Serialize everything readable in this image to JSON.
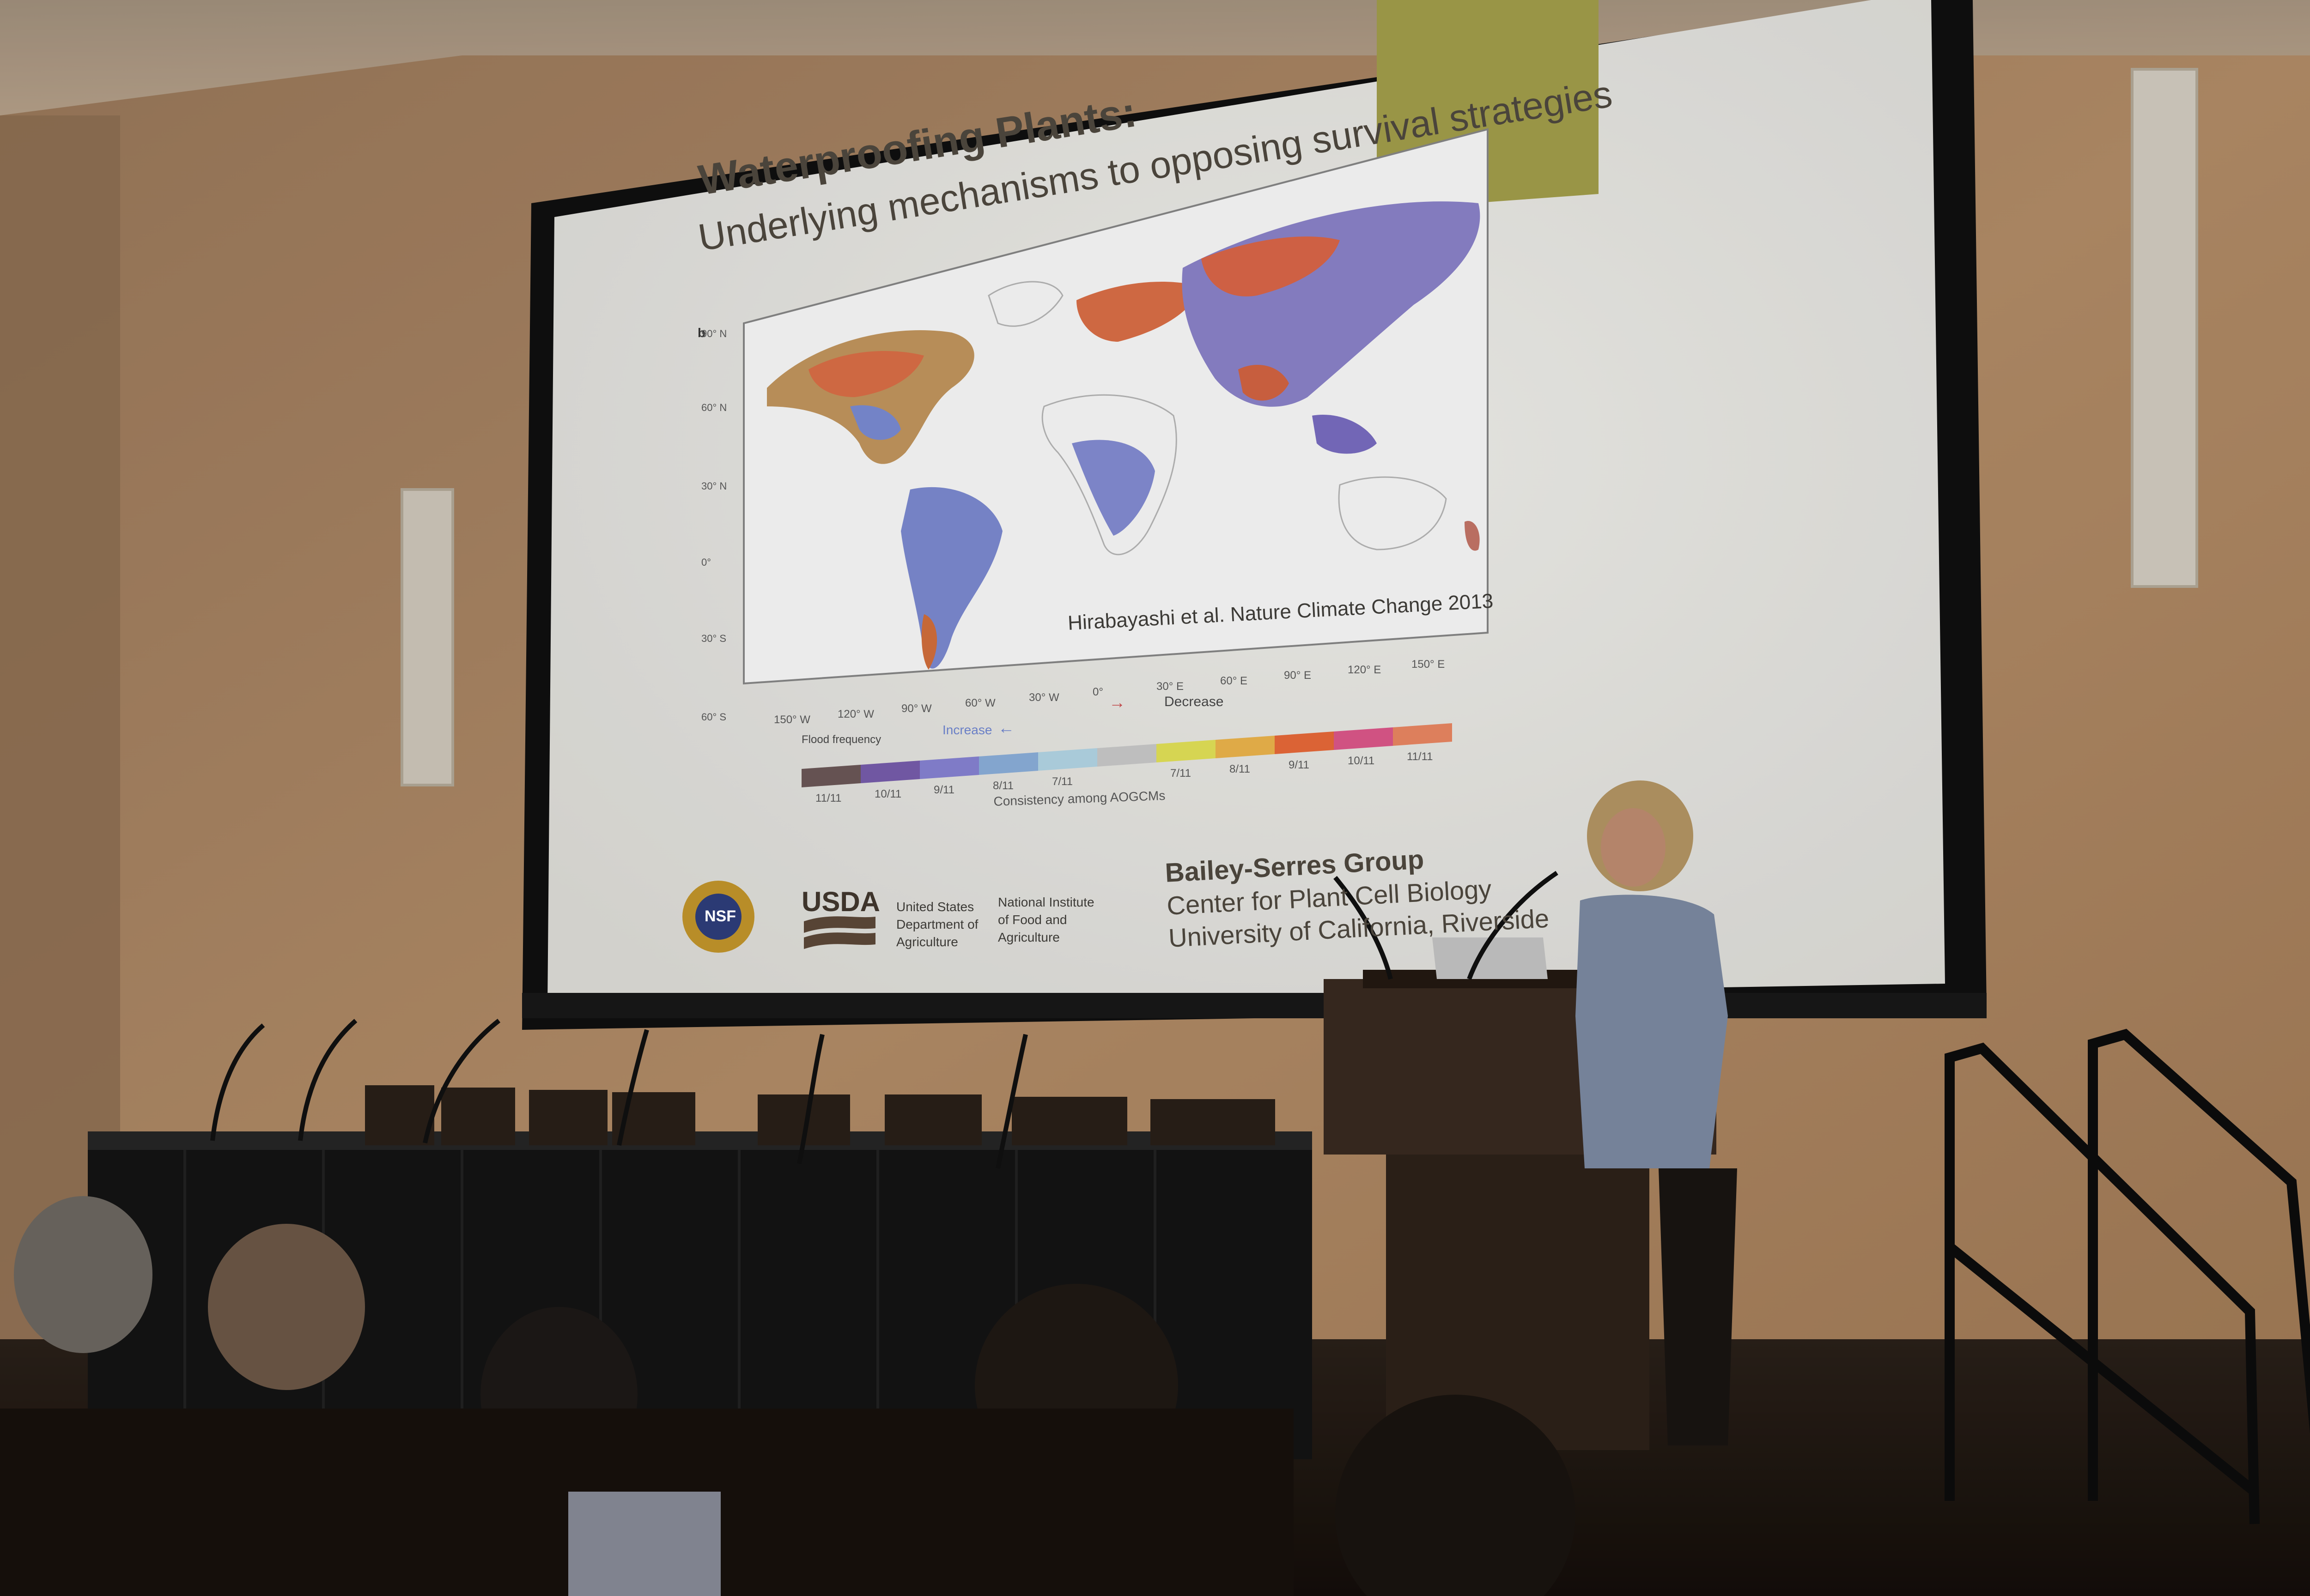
{
  "slide": {
    "title": "Waterproofing Plants:",
    "subtitle": "Underlying mechanisms to opposing survival strategies",
    "panel_letter": "b",
    "citation": "Hirabayashi et al. Nature Climate Change 2013",
    "lat_labels": [
      "90° N",
      "60° N",
      "30° N",
      "0°",
      "30° S",
      "60° S"
    ],
    "lon_labels": [
      "150° W",
      "120° W",
      "90° W",
      "60° W",
      "30° W",
      "0°",
      "30° E",
      "60° E",
      "90° E",
      "120° E",
      "150° E"
    ],
    "legend": {
      "title": "Flood frequency",
      "increase_label": "Increase",
      "decrease_label": "Decrease",
      "increase_values": [
        "11/11",
        "10/11",
        "9/11",
        "8/11",
        "7/11"
      ],
      "decrease_values": [
        "7/11",
        "8/11",
        "9/11",
        "10/11",
        "11/11"
      ],
      "increase_colors": [
        "#6e5a5a",
        "#7a5fb0",
        "#8a86d8",
        "#8fb3e0",
        "#b8dcec"
      ],
      "neutral_color": "#cfcfcf",
      "decrease_colors": [
        "#e9e85a",
        "#f2b94e",
        "#ee6c3a",
        "#e25a8e",
        "#f08a64"
      ],
      "axis_label": "Consistency among AOGCMs"
    },
    "logos": {
      "nsf": "NSF",
      "usda": "USDA",
      "usda_text": [
        "United States",
        "Department of",
        "Agriculture"
      ],
      "nifa_text": [
        "National Institute",
        "of Food and",
        "Agriculture"
      ]
    },
    "lab": {
      "line1": "Bailey-Serres Group",
      "line2": "Center for Plant Cell Biology",
      "line3": "University of California, Riverside"
    }
  },
  "colors": {
    "wall": "#b48a63",
    "screen": "#f1f0ec",
    "accent_olive": "#a7a24c",
    "title_text": "#4a443b"
  }
}
